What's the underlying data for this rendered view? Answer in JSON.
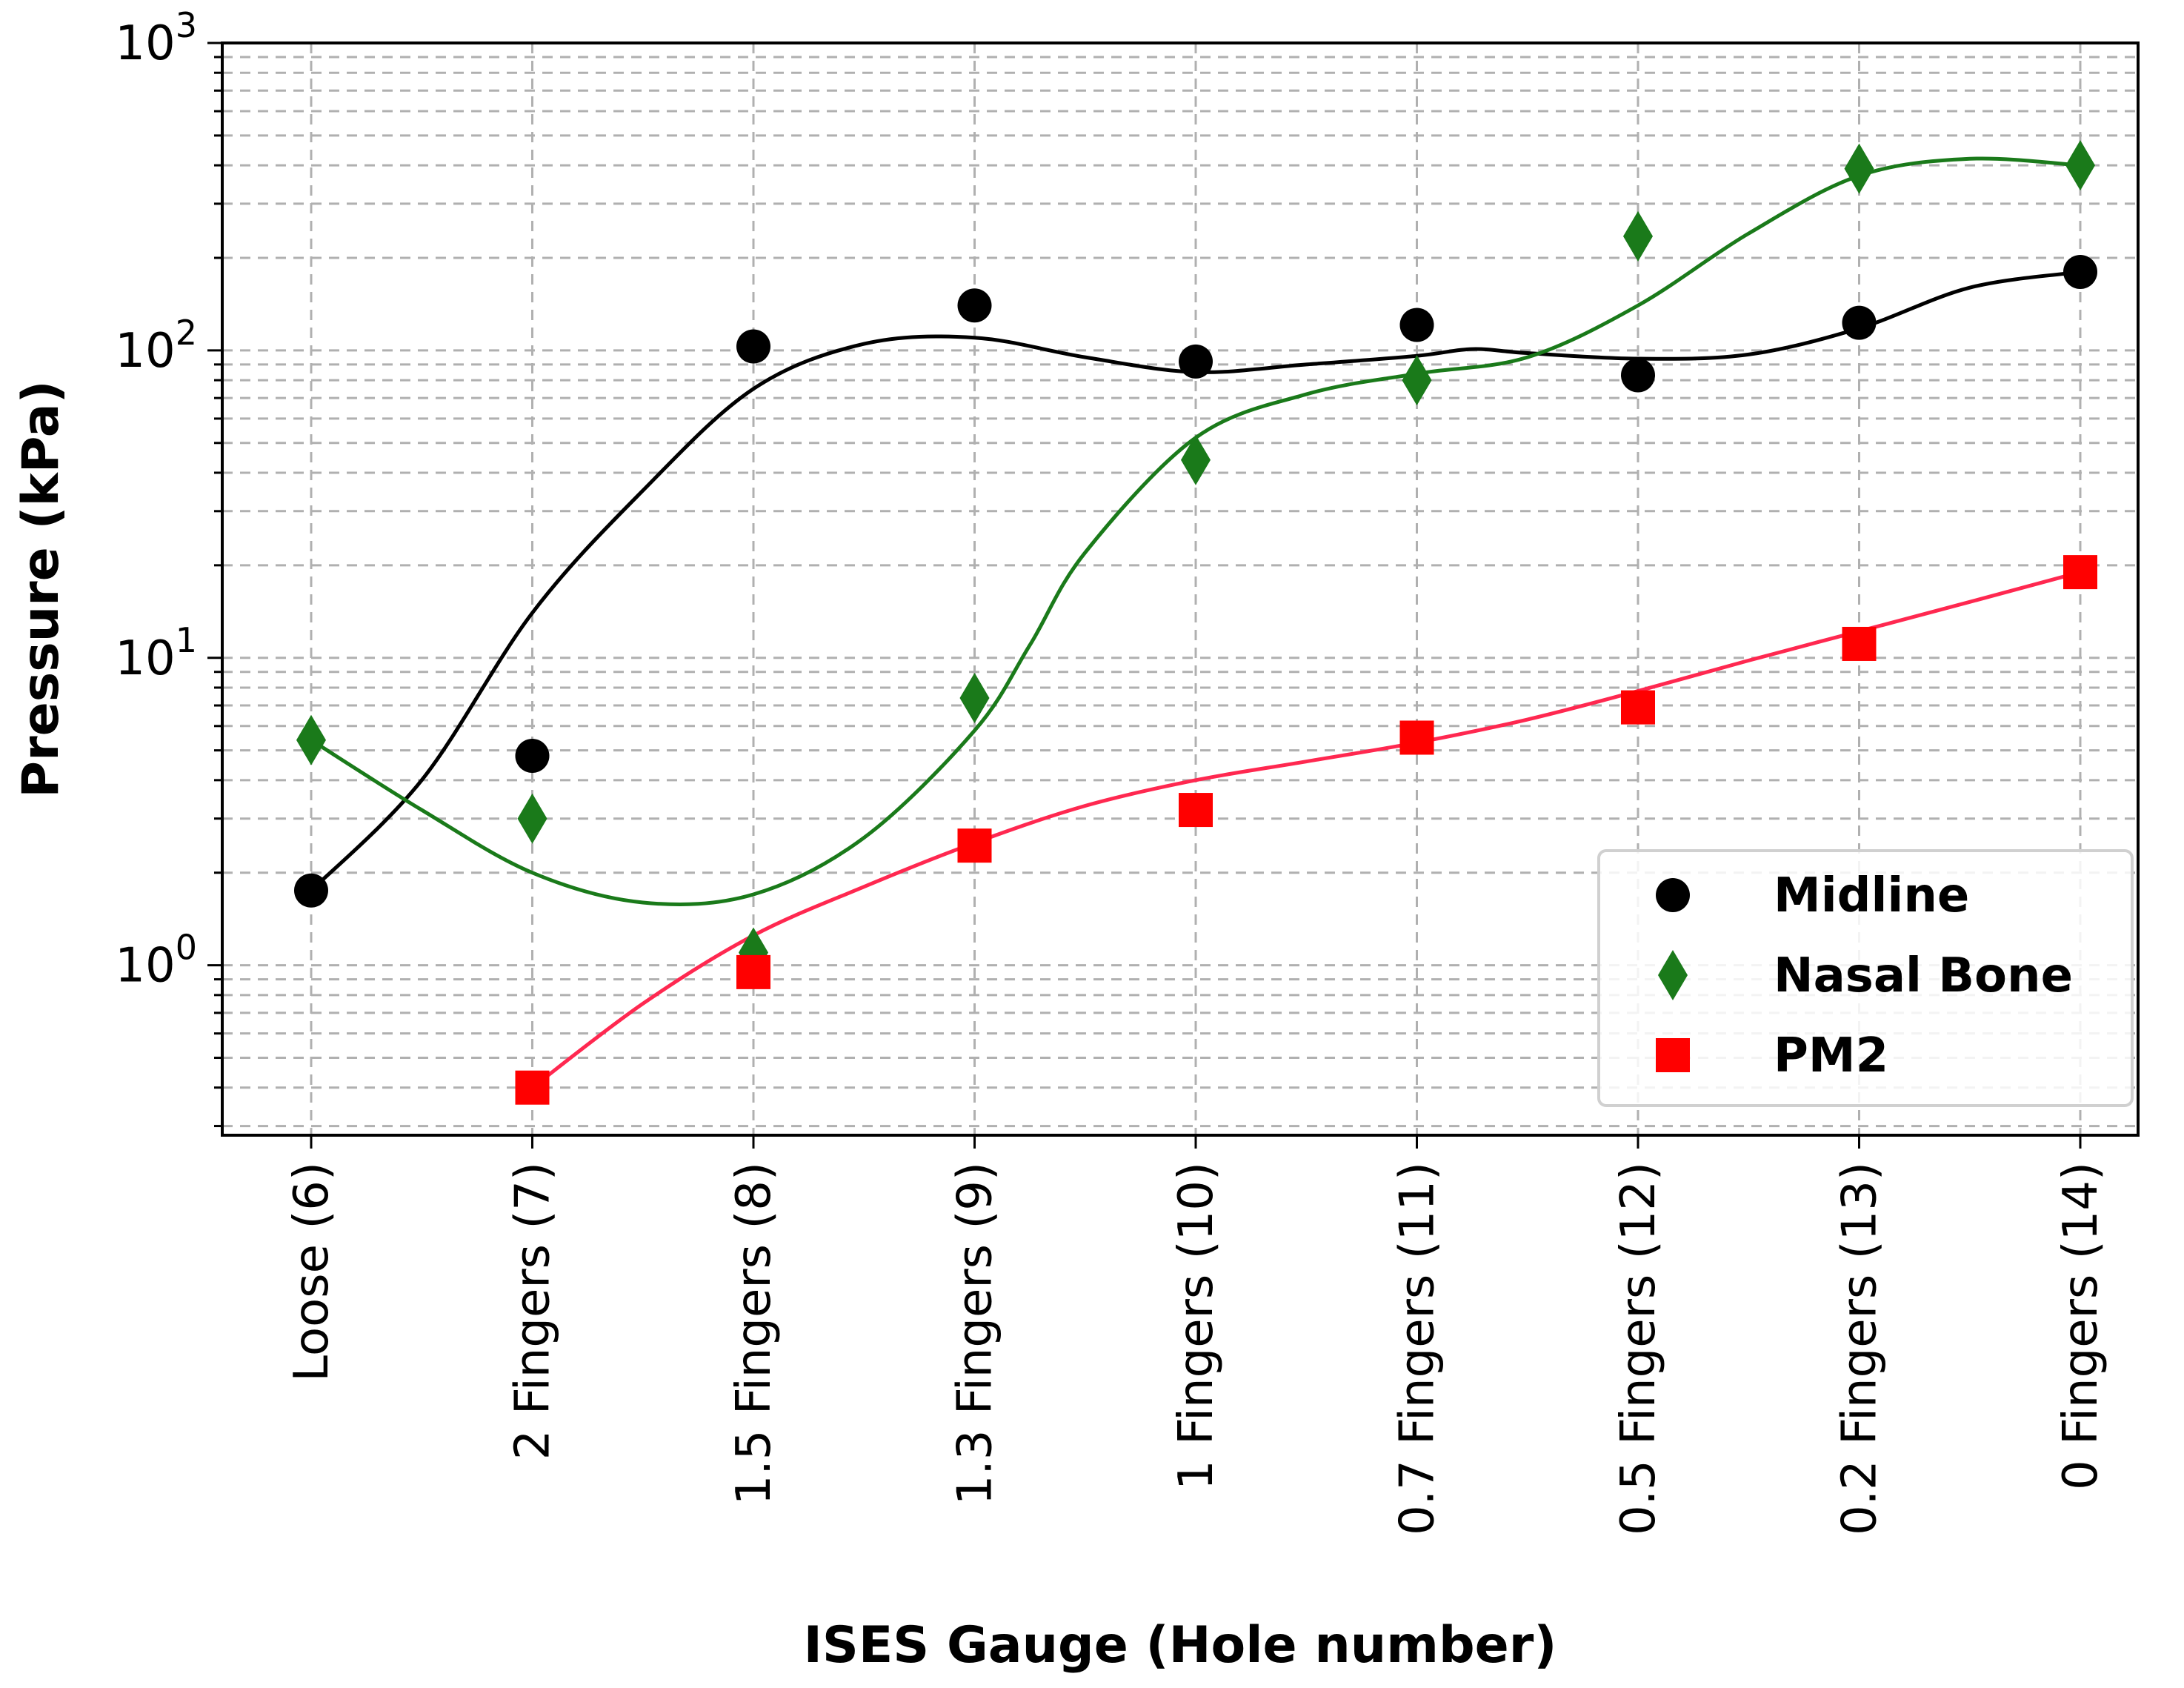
{
  "chart_data": {
    "type": "scatter",
    "xlabel": "ISES Gauge (Hole number)",
    "ylabel": "Pressure (kPa)",
    "y_scale": "log",
    "ylim": [
      0.28,
      1000
    ],
    "categories": [
      "Loose (6)",
      "2 Fingers (7)",
      "1.5 Fingers (8)",
      "1.3 Fingers (9)",
      "1 Fingers (10)",
      "0.7 Fingers (11)",
      "0.5 Fingers (12)",
      "0.2 Fingers (13)",
      "0 Fingers (14)"
    ],
    "y_ticks": [
      {
        "base": "10",
        "exp": "0",
        "value": 1
      },
      {
        "base": "10",
        "exp": "1",
        "value": 10
      },
      {
        "base": "10",
        "exp": "2",
        "value": 100
      },
      {
        "base": "10",
        "exp": "3",
        "value": 1000
      }
    ],
    "grid": true,
    "legend_position": "bottom-right",
    "series": [
      {
        "name": "Midline",
        "color": "#000000",
        "marker": "circle",
        "values": [
          1.75,
          4.8,
          103,
          140,
          92,
          121,
          83,
          123,
          180
        ],
        "fit": [
          [
            0,
            1.75
          ],
          [
            0.5,
            4.0
          ],
          [
            1,
            14
          ],
          [
            1.5,
            35
          ],
          [
            2,
            75
          ],
          [
            2.5,
            105
          ],
          [
            3,
            110
          ],
          [
            3.5,
            95
          ],
          [
            4,
            85
          ],
          [
            4.5,
            90
          ],
          [
            5,
            96
          ],
          [
            5.25,
            101
          ],
          [
            5.5,
            98
          ],
          [
            6,
            94
          ],
          [
            6.5,
            97
          ],
          [
            7,
            118
          ],
          [
            7.5,
            160
          ],
          [
            8,
            180
          ]
        ]
      },
      {
        "name": "Nasal Bone",
        "color": "#1a7a1a",
        "marker": "diamond",
        "values": [
          5.4,
          3.0,
          1.1,
          7.4,
          44,
          80,
          235,
          390,
          400
        ],
        "fit": [
          [
            0,
            5.4
          ],
          [
            0.5,
            3.2
          ],
          [
            1,
            2.0
          ],
          [
            1.5,
            1.6
          ],
          [
            2,
            1.7
          ],
          [
            2.5,
            2.6
          ],
          [
            3,
            5.8
          ],
          [
            3.25,
            11
          ],
          [
            3.5,
            22
          ],
          [
            4,
            52
          ],
          [
            4.5,
            72
          ],
          [
            5,
            84
          ],
          [
            5.5,
            95
          ],
          [
            6,
            140
          ],
          [
            6.5,
            240
          ],
          [
            7,
            370
          ],
          [
            7.5,
            420
          ],
          [
            8,
            400
          ]
        ]
      },
      {
        "name": "PM2",
        "color": "#ff0000",
        "line_color": "#ff2850",
        "marker": "square",
        "values": [
          null,
          0.4,
          0.95,
          2.45,
          3.2,
          5.5,
          6.9,
          11.1,
          19
        ],
        "fit": [
          [
            1,
            0.4
          ],
          [
            1.5,
            0.75
          ],
          [
            2,
            1.25
          ],
          [
            2.5,
            1.8
          ],
          [
            3,
            2.5
          ],
          [
            3.5,
            3.3
          ],
          [
            4,
            4.0
          ],
          [
            4.5,
            4.6
          ],
          [
            5,
            5.3
          ],
          [
            5.5,
            6.3
          ],
          [
            6,
            7.8
          ],
          [
            6.5,
            9.8
          ],
          [
            7,
            12.2
          ],
          [
            7.5,
            15.2
          ],
          [
            8,
            19
          ]
        ]
      }
    ]
  }
}
